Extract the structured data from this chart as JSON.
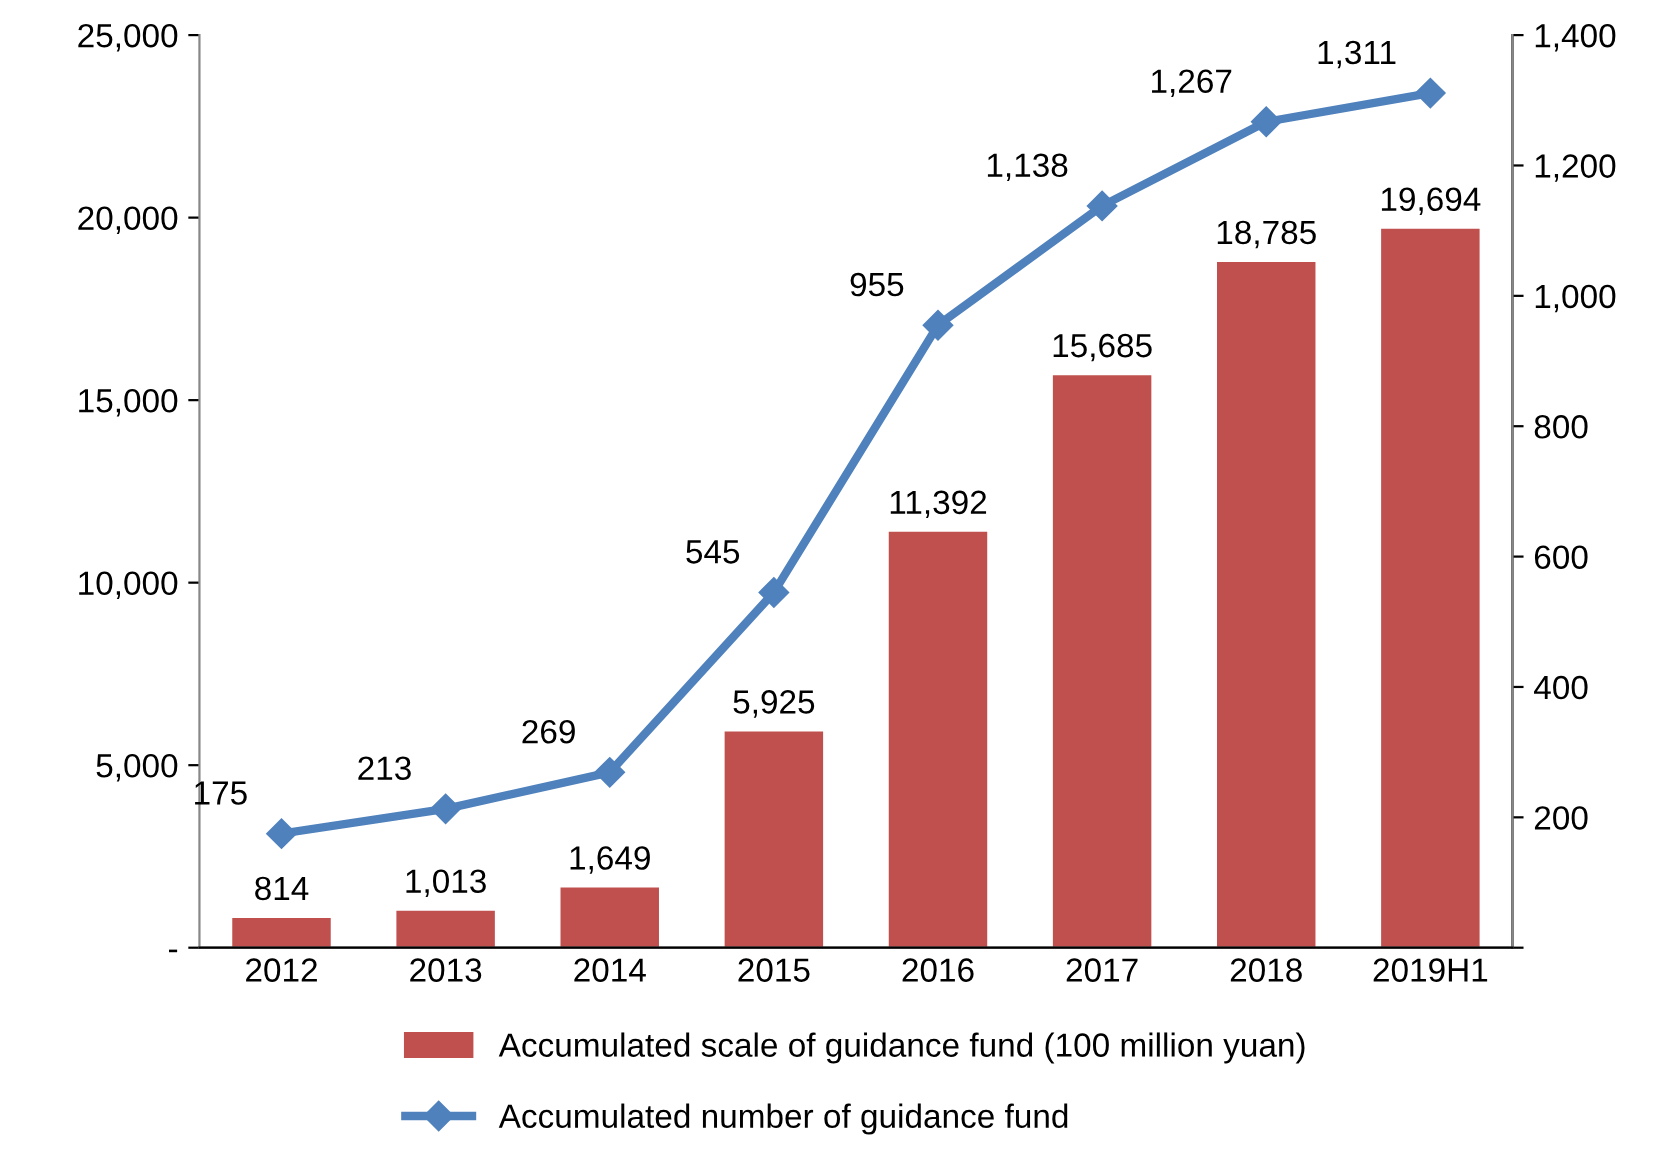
{
  "chart_data": {
    "type": "bar",
    "categories": [
      "2012",
      "2013",
      "2014",
      "2015",
      "2016",
      "2017",
      "2018",
      "2019H1"
    ],
    "series": [
      {
        "name": "Accumulated scale of guidance fund (100 million yuan)",
        "color": "#c0504d",
        "values": [
          814,
          1013,
          1649,
          5925,
          11392,
          15685,
          18785,
          19694
        ],
        "value_labels": [
          "814",
          "1,013",
          "1,649",
          "5,925",
          "11,392",
          "15,685",
          "18,785",
          "19,694"
        ]
      },
      {
        "name": "Accumulated number of guidance fund",
        "type": "line",
        "axis": "y2",
        "color": "#4f81bd",
        "marker": "diamond",
        "values": [
          175,
          213,
          269,
          545,
          955,
          1138,
          1267,
          1311
        ],
        "value_labels": [
          "175",
          "213",
          "269",
          "545",
          "955",
          "1,138",
          "1,267",
          "1,311"
        ]
      }
    ],
    "ylim": [
      0,
      25000
    ],
    "yticks": [
      {
        "value": 0,
        "label": "-"
      },
      {
        "value": 5000,
        "label": "5,000"
      },
      {
        "value": 10000,
        "label": "10,000"
      },
      {
        "value": 15000,
        "label": "15,000"
      },
      {
        "value": 20000,
        "label": "20,000"
      },
      {
        "value": 25000,
        "label": "25,000"
      }
    ],
    "y2lim": [
      0,
      1400
    ],
    "y2ticks": [
      {
        "value": 0,
        "label": null
      },
      {
        "value": 200,
        "label": "200"
      },
      {
        "value": 400,
        "label": "400"
      },
      {
        "value": 600,
        "label": "600"
      },
      {
        "value": 800,
        "label": "800"
      },
      {
        "value": 1000,
        "label": "1,000"
      },
      {
        "value": 1200,
        "label": "1,200"
      },
      {
        "value": 1400,
        "label": "1,400"
      }
    ],
    "grid": false,
    "legend": "bottom"
  }
}
